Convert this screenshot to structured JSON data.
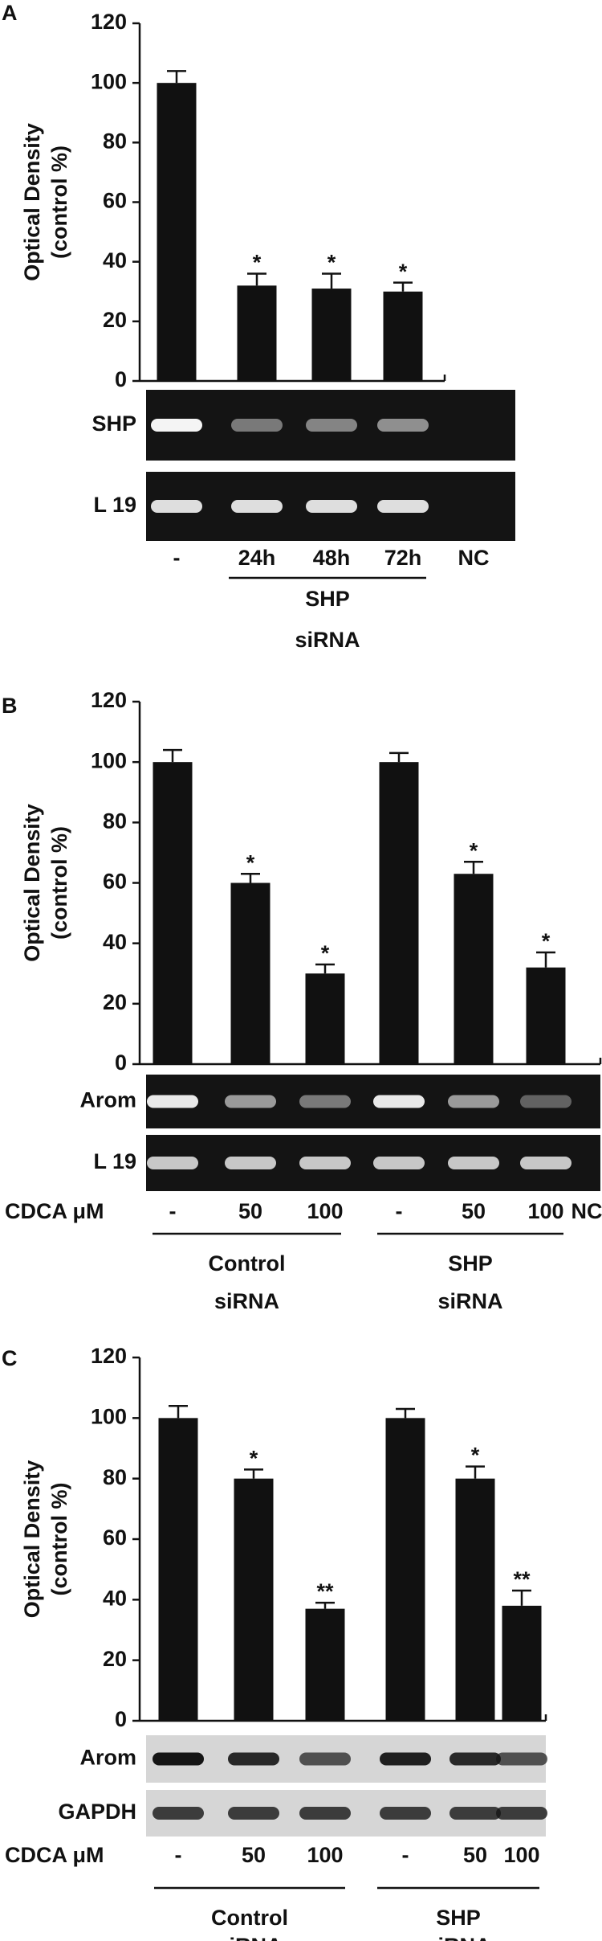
{
  "charts": [
    {
      "type": "bar",
      "panel": "A",
      "y_label": [
        "Optical Density",
        "(control %)"
      ],
      "categories": [
        "-",
        "24h",
        "48h",
        "72h",
        "NC"
      ],
      "values": [
        100,
        32,
        31,
        30,
        null
      ],
      "errors": [
        4,
        4,
        5,
        3,
        null
      ],
      "significance": [
        null,
        "*",
        "*",
        "*",
        null
      ],
      "color": "#111111",
      "ylim": [
        0,
        120
      ],
      "yticks": [
        0,
        20,
        40,
        60,
        80,
        100,
        120
      ],
      "gel_labels": [
        "SHP",
        "L 19"
      ],
      "groups": [
        [
          "SHP",
          "siRNA"
        ]
      ]
    },
    {
      "type": "bar",
      "panel": "B",
      "y_label": [
        "Optical Density",
        "(control %)"
      ],
      "x_label": "CDCA μM",
      "categories": [
        "-",
        "50",
        "100",
        "-",
        "50",
        "100",
        "NC"
      ],
      "values": [
        100,
        60,
        30,
        100,
        63,
        32,
        null
      ],
      "errors": [
        4,
        3,
        3,
        3,
        4,
        5,
        null
      ],
      "significance": [
        null,
        "*",
        "*",
        null,
        "*",
        "*",
        null
      ],
      "color": "#111111",
      "ylim": [
        0,
        120
      ],
      "yticks": [
        0,
        20,
        40,
        60,
        80,
        100,
        120
      ],
      "gel_labels": [
        "Arom",
        "L 19"
      ],
      "groups": [
        [
          "Control",
          "siRNA"
        ],
        [
          "SHP",
          "siRNA"
        ]
      ]
    },
    {
      "type": "bar",
      "panel": "C",
      "y_label": [
        "Optical Density",
        "(control %)"
      ],
      "x_label": "CDCA μM",
      "categories": [
        "-",
        "50",
        "100",
        "-",
        "50",
        "100"
      ],
      "values": [
        100,
        80,
        37,
        100,
        80,
        38
      ],
      "errors": [
        4,
        3,
        2,
        3,
        4,
        5
      ],
      "significance": [
        null,
        "*",
        "**",
        null,
        "*",
        "**"
      ],
      "color": "#111111",
      "ylim": [
        0,
        120
      ],
      "yticks": [
        0,
        20,
        40,
        60,
        80,
        100,
        120
      ],
      "gel_labels": [
        "Arom",
        "GAPDH"
      ],
      "groups": [
        [
          "Control",
          "siRNA"
        ],
        [
          "SHP",
          "siRNA"
        ]
      ]
    }
  ]
}
